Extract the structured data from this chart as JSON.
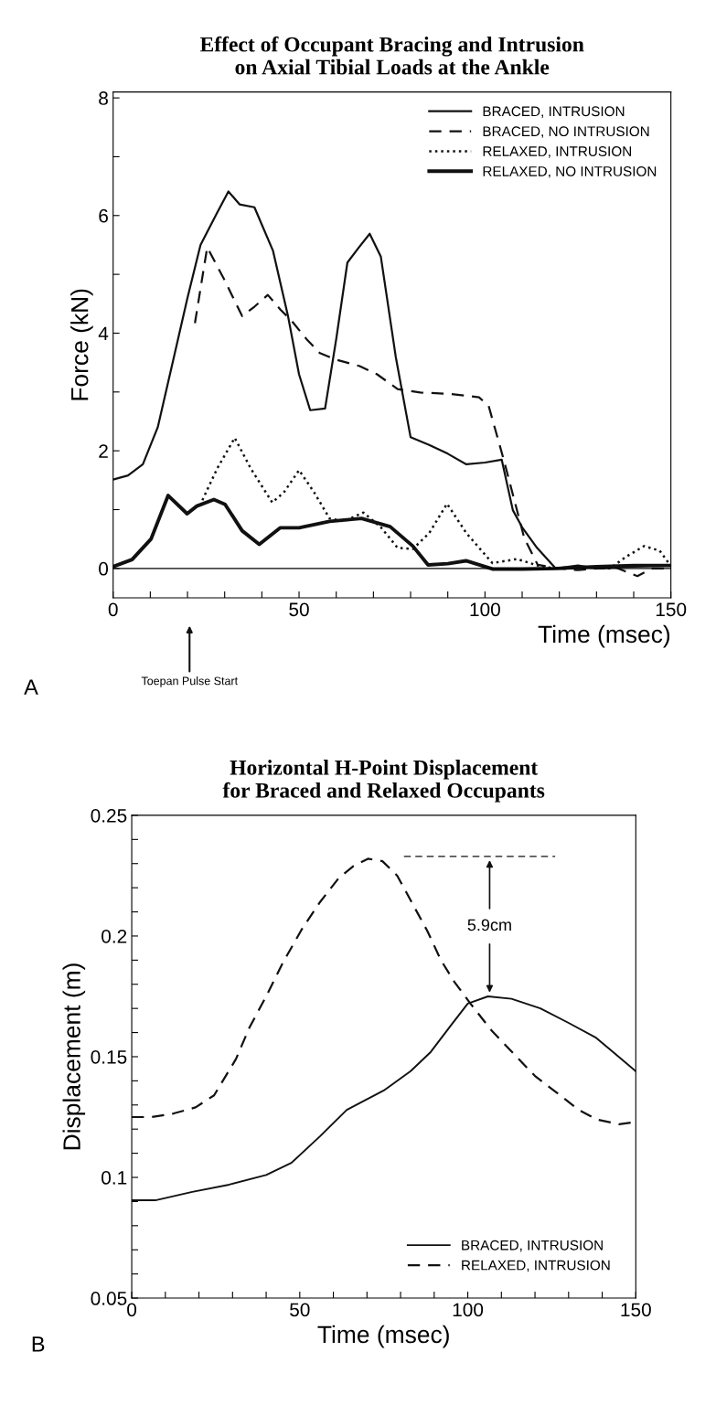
{
  "chart_data": [
    {
      "type": "line",
      "title": "Effect of Occupant Bracing and Intrusion\non Axial Tibial Loads at the Ankle",
      "xlabel": "Time (msec)",
      "ylabel": "Force (kN)",
      "xlim": [
        0,
        150
      ],
      "ylim": [
        -0.5,
        8.1
      ],
      "xticks": [
        0,
        {
          "value": 10,
          "label": null
        },
        {
          "value": 20,
          "label": null
        },
        {
          "value": 30,
          "label": null
        },
        {
          "value": 40,
          "label": null
        },
        50,
        {
          "value": 60,
          "label": null
        },
        {
          "value": 70,
          "label": null
        },
        {
          "value": 80,
          "label": null
        },
        {
          "value": 90,
          "label": null
        },
        100,
        {
          "value": 110,
          "label": null
        },
        {
          "value": 120,
          "label": null
        },
        {
          "value": 130,
          "label": null
        },
        {
          "value": 140,
          "label": null
        },
        150
      ],
      "yticks": [
        0,
        {
          "value": 1,
          "label": null
        },
        2,
        {
          "value": 3,
          "label": null
        },
        4,
        {
          "value": 5,
          "label": null
        },
        6,
        {
          "value": 7,
          "label": null
        },
        8
      ],
      "grid": false,
      "legend": "top right",
      "marker": "none",
      "ref_lines": [
        {
          "axis": "y",
          "value": 0,
          "label": null,
          "color": "#000000"
        }
      ],
      "annotations": [
        "Toepan Pulse Start",
        "A"
      ],
      "series": [
        {
          "name": "BRACED, INTRUSION",
          "color": "#111111",
          "line_style": "solid",
          "x": [
            0,
            4,
            8,
            12,
            16,
            20,
            23.5,
            28,
            31,
            34,
            38,
            43,
            47,
            50,
            53,
            57,
            60,
            63,
            66,
            69,
            72,
            76,
            80,
            85,
            90,
            95,
            100,
            104.5,
            107.5,
            110,
            114,
            119,
            125,
            130,
            135,
            140,
            145,
            150
          ],
          "values": [
            1.51,
            1.58,
            1.77,
            2.4,
            3.5,
            4.6,
            5.5,
            6.05,
            6.41,
            6.19,
            6.14,
            5.4,
            4.3,
            3.3,
            2.69,
            2.72,
            3.9,
            5.2,
            5.45,
            5.69,
            5.3,
            3.6,
            2.23,
            2.1,
            1.95,
            1.77,
            1.8,
            1.85,
            0.99,
            0.7,
            0.35,
            0.0,
            0.05,
            0.0,
            0.02,
            0.03,
            0.04,
            0.05
          ]
        },
        {
          "name": "BRACED, NO INTRUSION",
          "color": "#111111",
          "line_style": "dashed",
          "x": [
            22,
            25.3,
            30,
            34.7,
            38,
            41.6,
            45,
            48,
            52,
            55.6,
            60,
            66.3,
            71,
            76.5,
            82.6,
            90,
            98.4,
            101,
            105,
            110.6,
            114.2,
            120,
            125,
            130,
            135,
            141,
            145,
            150
          ],
          "values": [
            4.17,
            5.46,
            4.9,
            4.29,
            4.45,
            4.65,
            4.4,
            4.21,
            3.9,
            3.66,
            3.55,
            3.44,
            3.3,
            3.05,
            2.99,
            2.97,
            2.91,
            2.76,
            1.86,
            0.51,
            0.06,
            0.0,
            -0.03,
            0.0,
            0.02,
            -0.13,
            0.0,
            0.0
          ]
        },
        {
          "name": "RELAXED, INTRUSION",
          "color": "#111111",
          "line_style": "dotted",
          "x": [
            24,
            28,
            32.7,
            37,
            42.8,
            46,
            50,
            54,
            58.2,
            62,
            67.3,
            72,
            76.5,
            80.6,
            85,
            89.8,
            95,
            102,
            108.6,
            115.2,
            120,
            126,
            133.6,
            138,
            142.8,
            147,
            149.4
          ],
          "values": [
            1.16,
            1.7,
            2.22,
            1.7,
            1.12,
            1.3,
            1.67,
            1.3,
            0.85,
            0.8,
            0.95,
            0.7,
            0.35,
            0.33,
            0.6,
            1.1,
            0.6,
            0.09,
            0.16,
            0.03,
            0.0,
            0.02,
            0.0,
            0.2,
            0.38,
            0.3,
            0.09
          ]
        },
        {
          "name": "RELAXED, NO INTRUSION",
          "color": "#111111",
          "line_style": "solid",
          "x": [
            0,
            5.1,
            10.2,
            14.8,
            19.9,
            22.5,
            27.1,
            30.1,
            34.7,
            39.3,
            44.9,
            50,
            58.2,
            66.8,
            74.5,
            80.6,
            84.7,
            90,
            94.9,
            102,
            110,
            119.3,
            130,
            140,
            150
          ],
          "values": [
            0.03,
            0.15,
            0.5,
            1.24,
            0.93,
            1.06,
            1.17,
            1.09,
            0.64,
            0.41,
            0.69,
            0.69,
            0.8,
            0.85,
            0.71,
            0.38,
            0.06,
            0.08,
            0.13,
            -0.01,
            -0.01,
            0.0,
            0.03,
            0.05,
            0.05
          ]
        }
      ]
    },
    {
      "type": "line",
      "title": "Horizontal H-Point Displacement\nfor Braced and Relaxed Occupants",
      "xlabel": "Time (msec)",
      "ylabel": "Displacement (m)",
      "xlim": [
        0,
        150
      ],
      "ylim": [
        0.05,
        0.25
      ],
      "xticks": [
        0,
        {
          "value": 10,
          "label": null
        },
        {
          "value": 20,
          "label": null
        },
        {
          "value": 30,
          "label": null
        },
        {
          "value": 40,
          "label": null
        },
        50,
        {
          "value": 60,
          "label": null
        },
        {
          "value": 70,
          "label": null
        },
        {
          "value": 80,
          "label": null
        },
        {
          "value": 90,
          "label": null
        },
        100,
        {
          "value": 110,
          "label": null
        },
        {
          "value": 120,
          "label": null
        },
        {
          "value": 130,
          "label": null
        },
        {
          "value": 140,
          "label": null
        },
        150
      ],
      "yticks": [
        0.05,
        {
          "value": 0.06,
          "label": null
        },
        {
          "value": 0.07,
          "label": null
        },
        {
          "value": 0.08,
          "label": null
        },
        {
          "value": 0.09,
          "label": null
        },
        0.1,
        {
          "value": 0.11,
          "label": null
        },
        {
          "value": 0.12,
          "label": null
        },
        {
          "value": 0.13,
          "label": null
        },
        {
          "value": 0.14,
          "label": null
        },
        0.15,
        {
          "value": 0.16,
          "label": null
        },
        {
          "value": 0.17,
          "label": null
        },
        {
          "value": 0.18,
          "label": null
        },
        {
          "value": 0.19,
          "label": null
        },
        0.2,
        {
          "value": 0.21,
          "label": null
        },
        {
          "value": 0.22,
          "label": null
        },
        {
          "value": 0.23,
          "label": null
        },
        {
          "value": 0.24,
          "label": null
        },
        0.25
      ],
      "grid": false,
      "legend": "bottom right",
      "marker": "none",
      "annotations": [
        "5.9cm",
        "B"
      ],
      "series": [
        {
          "name": "BRACED, INTRUSION",
          "color": "#111111",
          "line_style": "solid",
          "x": [
            0,
            7,
            18,
            29,
            40,
            47.5,
            56,
            64,
            75,
            83,
            89,
            95,
            100,
            106,
            113,
            121.6,
            130,
            138,
            144,
            150
          ],
          "values": [
            0.0905,
            0.0905,
            0.094,
            0.097,
            0.101,
            0.106,
            0.117,
            0.128,
            0.136,
            0.144,
            0.152,
            0.163,
            0.172,
            0.175,
            0.174,
            0.17,
            0.164,
            0.158,
            0.151,
            0.144
          ]
        },
        {
          "name": "RELAXED, INTRUSION",
          "color": "#111111",
          "line_style": "dashed",
          "x": [
            0,
            6,
            12.5,
            19,
            24.5,
            31,
            35,
            40,
            45,
            50.7,
            56,
            61.6,
            66,
            70.3,
            74.6,
            79,
            83.3,
            88,
            92,
            96,
            100.8,
            107,
            113.8,
            120,
            127.5,
            133,
            138.4,
            145,
            150
          ],
          "values": [
            0.125,
            0.125,
            0.1265,
            0.129,
            0.134,
            0.149,
            0.162,
            0.175,
            0.189,
            0.203,
            0.214,
            0.224,
            0.229,
            0.232,
            0.231,
            0.225,
            0.214,
            0.202,
            0.19,
            0.181,
            0.172,
            0.161,
            0.151,
            0.142,
            0.134,
            0.128,
            0.124,
            0.122,
            0.123
          ]
        },
        {
          "color": "#111111",
          "line_style": "dashed",
          "x": [
            81,
            126
          ],
          "values": [
            0.233,
            0.233
          ]
        }
      ]
    }
  ]
}
